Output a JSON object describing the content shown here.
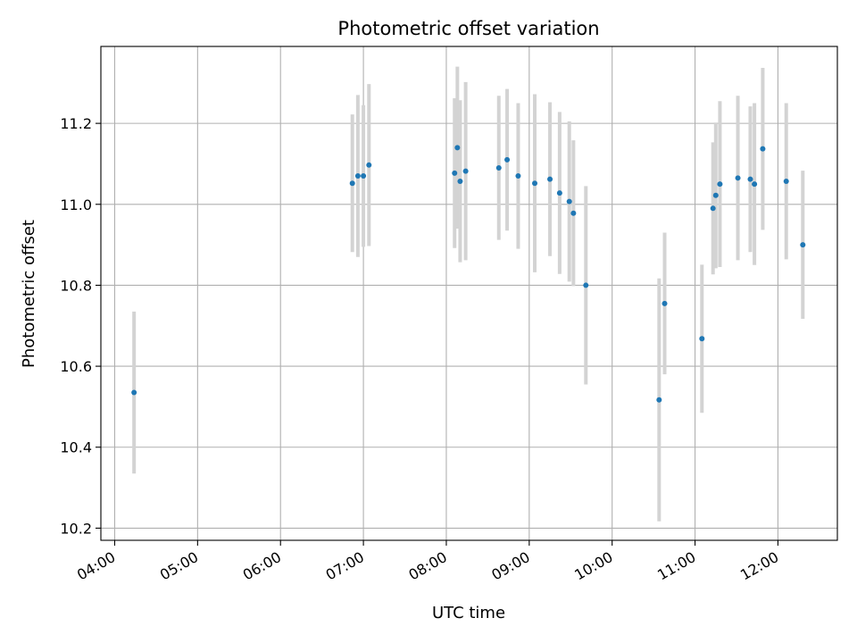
{
  "chart_data": {
    "type": "scatter",
    "title": "Photometric offset variation",
    "xlabel": "UTC time",
    "ylabel": "Photometric offset",
    "x_ticks": [
      "04:00",
      "05:00",
      "06:00",
      "07:00",
      "08:00",
      "09:00",
      "10:00",
      "11:00",
      "12:00"
    ],
    "y_ticks": [
      "10.2",
      "10.4",
      "10.6",
      "10.8",
      "11.0",
      "11.2"
    ],
    "xlim": [
      "03:50",
      "12:43"
    ],
    "ylim": [
      10.17,
      11.39
    ],
    "grid": true,
    "colors": {
      "point": "#1f77b4",
      "errorbar": "#d3d3d3",
      "grid": "#b0b0b0",
      "axis": "#000000"
    },
    "points": [
      {
        "t": "04:14",
        "y": 10.535,
        "err": 0.2
      },
      {
        "t": "06:52",
        "y": 11.052,
        "err": 0.17
      },
      {
        "t": "06:56",
        "y": 11.07,
        "err": 0.2
      },
      {
        "t": "07:00",
        "y": 11.07,
        "err": 0.175
      },
      {
        "t": "07:04",
        "y": 11.097,
        "err": 0.2
      },
      {
        "t": "08:06",
        "y": 11.077,
        "err": 0.185
      },
      {
        "t": "08:08",
        "y": 11.14,
        "err": 0.2
      },
      {
        "t": "08:10",
        "y": 11.057,
        "err": 0.2
      },
      {
        "t": "08:14",
        "y": 11.082,
        "err": 0.22
      },
      {
        "t": "08:38",
        "y": 11.09,
        "err": 0.178
      },
      {
        "t": "08:44",
        "y": 11.11,
        "err": 0.175
      },
      {
        "t": "08:52",
        "y": 11.07,
        "err": 0.18
      },
      {
        "t": "09:04",
        "y": 11.052,
        "err": 0.22
      },
      {
        "t": "09:15",
        "y": 11.062,
        "err": 0.19
      },
      {
        "t": "09:22",
        "y": 11.028,
        "err": 0.2
      },
      {
        "t": "09:29",
        "y": 11.007,
        "err": 0.198
      },
      {
        "t": "09:32",
        "y": 10.978,
        "err": 0.18
      },
      {
        "t": "09:41",
        "y": 10.8,
        "err": 0.245
      },
      {
        "t": "10:34",
        "y": 10.517,
        "err": 0.3
      },
      {
        "t": "10:38",
        "y": 10.755,
        "err": 0.175
      },
      {
        "t": "11:05",
        "y": 10.668,
        "err": 0.183
      },
      {
        "t": "11:13",
        "y": 10.99,
        "err": 0.163
      },
      {
        "t": "11:15",
        "y": 11.022,
        "err": 0.18
      },
      {
        "t": "11:18",
        "y": 11.05,
        "err": 0.205
      },
      {
        "t": "11:31",
        "y": 11.065,
        "err": 0.203
      },
      {
        "t": "11:40",
        "y": 11.062,
        "err": 0.18
      },
      {
        "t": "11:43",
        "y": 11.05,
        "err": 0.2
      },
      {
        "t": "11:49",
        "y": 11.137,
        "err": 0.2
      },
      {
        "t": "12:06",
        "y": 11.057,
        "err": 0.193
      },
      {
        "t": "12:18",
        "y": 10.9,
        "err": 0.183
      }
    ]
  }
}
